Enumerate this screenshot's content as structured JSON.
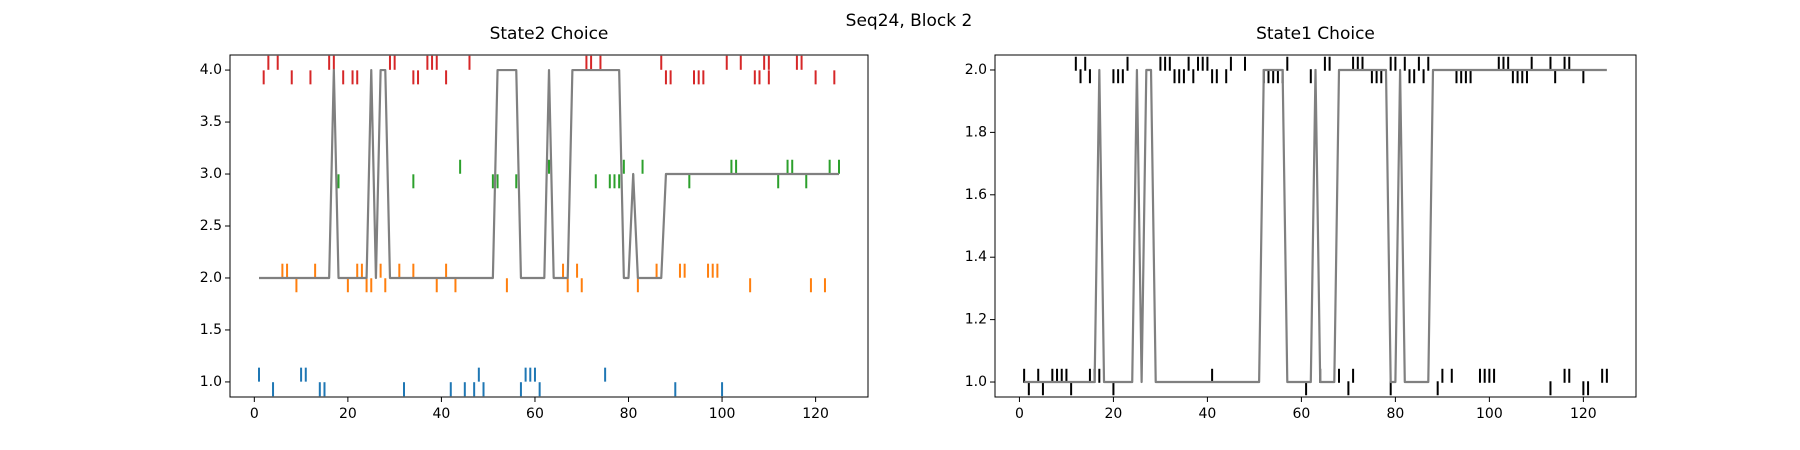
{
  "title": "Seq24, Block 2",
  "chart_data": [
    {
      "type": "line",
      "title": "State2 Choice",
      "xlim": [
        -5.2,
        131.2
      ],
      "xticks": [
        0,
        20,
        40,
        60,
        80,
        100,
        120
      ],
      "ylim": [
        0.855,
        4.145
      ],
      "yticks": [
        {
          "value": 1,
          "label": "1.0"
        },
        {
          "value": 1.5,
          "label": "1.5"
        },
        {
          "value": 2,
          "label": "2.0"
        },
        {
          "value": 2.5,
          "label": "2.5"
        },
        {
          "value": 3,
          "label": "3.0"
        },
        {
          "value": 3.5,
          "label": "3.5"
        },
        {
          "value": 4,
          "label": "4.0"
        }
      ],
      "series": [
        {
          "color": "#1f77b4",
          "marker": "|",
          "x": [
            1,
            10,
            11,
            48,
            58,
            59,
            60,
            75,
            4,
            14,
            15,
            32,
            42,
            45,
            47,
            49,
            57,
            61,
            90,
            100
          ],
          "values": [
            1.07,
            1.07,
            1.07,
            1.07,
            1.07,
            1.07,
            1.07,
            1.07,
            0.93,
            0.93,
            0.93,
            0.93,
            0.93,
            0.93,
            0.93,
            0.93,
            0.93,
            0.93,
            0.93,
            0.93
          ]
        },
        {
          "color": "#ff7f0e",
          "marker": "|",
          "x": [
            6,
            7,
            13,
            22,
            23,
            26,
            27,
            31,
            34,
            41,
            66,
            69,
            86,
            91,
            92,
            97,
            98,
            99,
            9,
            20,
            24,
            25,
            28,
            39,
            43,
            54,
            67,
            70,
            82,
            106,
            119,
            122
          ],
          "values": [
            2.07,
            2.07,
            2.07,
            2.07,
            2.07,
            2.07,
            2.07,
            2.07,
            2.07,
            2.07,
            2.07,
            2.07,
            2.07,
            2.07,
            2.07,
            2.07,
            2.07,
            2.07,
            1.93,
            1.93,
            1.93,
            1.93,
            1.93,
            1.93,
            1.93,
            1.93,
            1.93,
            1.93,
            1.93,
            1.93,
            1.93,
            1.93
          ]
        },
        {
          "color": "#2ca02c",
          "marker": "|",
          "x": [
            44,
            63,
            79,
            83,
            102,
            103,
            114,
            115,
            123,
            125,
            18,
            34,
            51,
            52,
            56,
            73,
            76,
            77,
            78,
            81,
            93,
            112,
            118
          ],
          "values": [
            3.07,
            3.07,
            3.07,
            3.07,
            3.07,
            3.07,
            3.07,
            3.07,
            3.07,
            3.07,
            2.93,
            2.93,
            2.93,
            2.93,
            2.93,
            2.93,
            2.93,
            2.93,
            2.93,
            2.93,
            2.93,
            2.93,
            2.93
          ]
        },
        {
          "color": "#d62728",
          "marker": "|",
          "x": [
            3,
            5,
            16,
            17,
            29,
            30,
            37,
            38,
            39,
            46,
            71,
            72,
            74,
            87,
            101,
            104,
            109,
            110,
            116,
            117,
            2,
            8,
            12,
            19,
            21,
            22,
            34,
            35,
            41,
            88,
            89,
            94,
            95,
            96,
            107,
            108,
            110,
            120,
            124
          ],
          "values": [
            4.07,
            4.07,
            4.07,
            4.07,
            4.07,
            4.07,
            4.07,
            4.07,
            4.07,
            4.07,
            4.07,
            4.07,
            4.07,
            4.07,
            4.07,
            4.07,
            4.07,
            4.07,
            4.07,
            4.07,
            3.93,
            3.93,
            3.93,
            3.93,
            3.93,
            3.93,
            3.93,
            3.93,
            3.93,
            3.93,
            3.93,
            3.93,
            3.93,
            3.93,
            3.93,
            3.93,
            3.93,
            3.93,
            3.93
          ]
        },
        {
          "color": "#808080",
          "marker": "line",
          "x": [
            1,
            2,
            3,
            4,
            5,
            6,
            7,
            8,
            9,
            10,
            11,
            12,
            13,
            14,
            15,
            16,
            17,
            18,
            19,
            20,
            21,
            22,
            23,
            24,
            25,
            26,
            27,
            28,
            29,
            30,
            31,
            32,
            33,
            34,
            35,
            36,
            37,
            38,
            39,
            40,
            41,
            42,
            43,
            44,
            45,
            46,
            47,
            48,
            49,
            50,
            51,
            52,
            53,
            54,
            55,
            56,
            57,
            58,
            59,
            60,
            61,
            62,
            63,
            64,
            65,
            66,
            67,
            68,
            69,
            70,
            71,
            72,
            73,
            74,
            75,
            76,
            77,
            78,
            79,
            80,
            81,
            82,
            83,
            84,
            85,
            86,
            87,
            88,
            89,
            90,
            91,
            92,
            93,
            94,
            95,
            96,
            97,
            98,
            99,
            100,
            101,
            102,
            103,
            104,
            105,
            106,
            107,
            108,
            109,
            110,
            111,
            112,
            113,
            114,
            115,
            116,
            117,
            118,
            119,
            120,
            121,
            122,
            123,
            124,
            125
          ],
          "values": [
            2,
            2,
            2,
            2,
            2,
            2,
            2,
            2,
            2,
            2,
            2,
            2,
            2,
            2,
            2,
            2,
            4,
            2,
            2,
            2,
            2,
            2,
            2,
            2,
            4,
            2,
            4,
            4,
            2,
            2,
            2,
            2,
            2,
            2,
            2,
            2,
            2,
            2,
            2,
            2,
            2,
            2,
            2,
            2,
            2,
            2,
            2,
            2,
            2,
            2,
            2,
            4,
            4,
            4,
            4,
            4,
            2,
            2,
            2,
            2,
            2,
            2,
            4,
            2,
            2,
            2,
            2,
            4,
            4,
            4,
            4,
            4,
            4,
            4,
            4,
            4,
            4,
            4,
            2,
            2,
            3,
            2,
            2,
            2,
            2,
            2,
            2,
            3,
            3,
            3,
            3,
            3,
            3,
            3,
            3,
            3,
            3,
            3,
            3,
            3,
            3,
            3,
            3,
            3,
            3,
            3,
            3,
            3,
            3,
            3,
            3,
            3,
            3,
            3,
            3,
            3,
            3,
            3,
            3,
            3,
            3,
            3,
            3,
            3,
            3
          ]
        }
      ]
    },
    {
      "type": "line",
      "title": "State1 Choice",
      "xlim": [
        -5.2,
        131.2
      ],
      "xticks": [
        0,
        20,
        40,
        60,
        80,
        100,
        120
      ],
      "ylim": [
        0.952,
        2.048
      ],
      "yticks": [
        {
          "value": 1,
          "label": "1.0"
        },
        {
          "value": 1.2,
          "label": "1.2"
        },
        {
          "value": 1.4,
          "label": "1.4"
        },
        {
          "value": 1.6,
          "label": "1.6"
        },
        {
          "value": 1.8,
          "label": "1.8"
        },
        {
          "value": 2,
          "label": "2.0"
        }
      ],
      "series": [
        {
          "color": "#000000",
          "marker": "|",
          "x": [
            12,
            14,
            23,
            30,
            31,
            32,
            36,
            38,
            39,
            40,
            45,
            48,
            57,
            65,
            66,
            71,
            72,
            73,
            79,
            80,
            82,
            85,
            87,
            102,
            103,
            104,
            109,
            113,
            116,
            117,
            13,
            15,
            20,
            21,
            22,
            33,
            34,
            35,
            37,
            41,
            42,
            44,
            52,
            53,
            54,
            55,
            56,
            62,
            63,
            75,
            76,
            77,
            83,
            84,
            86,
            93,
            94,
            95,
            96,
            105,
            106,
            107,
            108,
            114,
            120,
            1,
            4,
            7,
            8,
            9,
            10,
            15,
            16,
            17,
            41,
            64,
            68,
            71,
            90,
            92,
            98,
            99,
            100,
            101,
            116,
            117,
            124,
            125,
            2,
            5,
            11,
            20,
            61,
            70,
            79,
            89,
            113,
            120,
            121
          ],
          "values": [
            2.02,
            2.02,
            2.02,
            2.02,
            2.02,
            2.02,
            2.02,
            2.02,
            2.02,
            2.02,
            2.02,
            2.02,
            2.02,
            2.02,
            2.02,
            2.02,
            2.02,
            2.02,
            2.02,
            2.02,
            2.02,
            2.02,
            2.02,
            2.02,
            2.02,
            2.02,
            2.02,
            2.02,
            2.02,
            2.02,
            1.98,
            1.98,
            1.98,
            1.98,
            1.98,
            1.98,
            1.98,
            1.98,
            1.98,
            1.98,
            1.98,
            1.98,
            1.98,
            1.98,
            1.98,
            1.98,
            1.98,
            1.98,
            1.98,
            1.98,
            1.98,
            1.98,
            1.98,
            1.98,
            1.98,
            1.98,
            1.98,
            1.98,
            1.98,
            1.98,
            1.98,
            1.98,
            1.98,
            1.98,
            1.98,
            1.02,
            1.02,
            1.02,
            1.02,
            1.02,
            1.02,
            1.02,
            1.02,
            1.02,
            1.02,
            1.02,
            1.02,
            1.02,
            1.02,
            1.02,
            1.02,
            1.02,
            1.02,
            1.02,
            1.02,
            1.02,
            1.02,
            1.02,
            0.98,
            0.98,
            0.98,
            0.98,
            0.98,
            0.98,
            0.98,
            0.98,
            0.98,
            0.98,
            0.98
          ]
        },
        {
          "color": "#808080",
          "marker": "line",
          "x": [
            1,
            2,
            3,
            4,
            5,
            6,
            7,
            8,
            9,
            10,
            11,
            12,
            13,
            14,
            15,
            16,
            17,
            18,
            19,
            20,
            21,
            22,
            23,
            24,
            25,
            26,
            27,
            28,
            29,
            30,
            31,
            32,
            33,
            34,
            35,
            36,
            37,
            38,
            39,
            40,
            41,
            42,
            43,
            44,
            45,
            46,
            47,
            48,
            49,
            50,
            51,
            52,
            53,
            54,
            55,
            56,
            57,
            58,
            59,
            60,
            61,
            62,
            63,
            64,
            65,
            66,
            67,
            68,
            69,
            70,
            71,
            72,
            73,
            74,
            75,
            76,
            77,
            78,
            79,
            80,
            81,
            82,
            83,
            84,
            85,
            86,
            87,
            88,
            89,
            90,
            91,
            92,
            93,
            94,
            95,
            96,
            97,
            98,
            99,
            100,
            101,
            102,
            103,
            104,
            105,
            106,
            107,
            108,
            109,
            110,
            111,
            112,
            113,
            114,
            115,
            116,
            117,
            118,
            119,
            120,
            121,
            122,
            123,
            124,
            125
          ],
          "values": [
            1,
            1,
            1,
            1,
            1,
            1,
            1,
            1,
            1,
            1,
            1,
            1,
            1,
            1,
            1,
            1,
            2,
            1,
            1,
            1,
            1,
            1,
            1,
            1,
            2,
            1,
            2,
            2,
            1,
            1,
            1,
            1,
            1,
            1,
            1,
            1,
            1,
            1,
            1,
            1,
            1,
            1,
            1,
            1,
            1,
            1,
            1,
            1,
            1,
            1,
            1,
            2,
            2,
            2,
            2,
            2,
            1,
            1,
            1,
            1,
            1,
            1,
            2,
            1,
            1,
            1,
            1,
            2,
            2,
            2,
            2,
            2,
            2,
            2,
            2,
            2,
            2,
            2,
            1,
            1,
            2,
            1,
            1,
            1,
            1,
            1,
            1,
            2,
            2,
            2,
            2,
            2,
            2,
            2,
            2,
            2,
            2,
            2,
            2,
            2,
            2,
            2,
            2,
            2,
            2,
            2,
            2,
            2,
            2,
            2,
            2,
            2,
            2,
            2,
            2,
            2,
            2,
            2,
            2,
            2,
            2,
            2,
            2,
            2,
            2
          ]
        }
      ]
    }
  ]
}
